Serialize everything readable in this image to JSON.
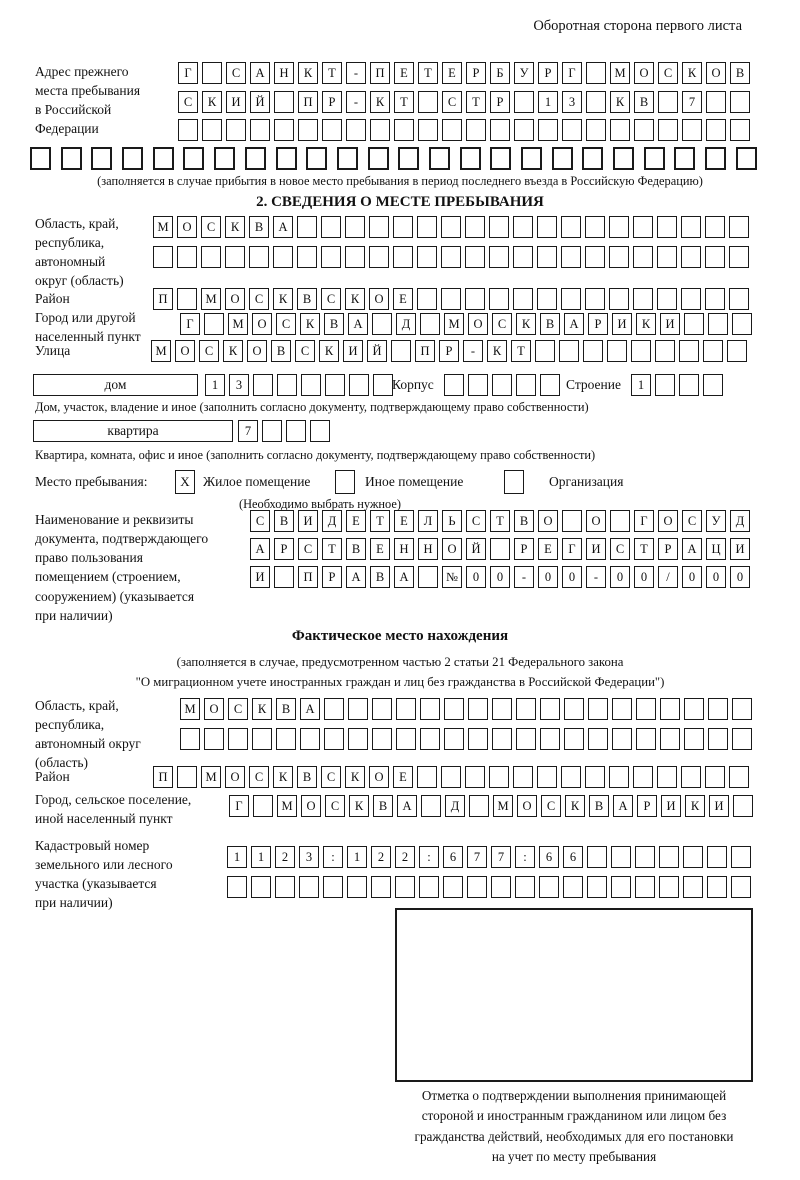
{
  "header": {
    "title": "Оборотная сторона первого листа"
  },
  "prev_address": {
    "label": "Адрес прежнего\nместа пребывания\nв Российской\nФедерации",
    "rows": [
      [
        "Г",
        "",
        "С",
        "А",
        "Н",
        "К",
        "Т",
        "-",
        "П",
        "Е",
        "Т",
        "Е",
        "Р",
        "Б",
        "У",
        "Р",
        "Г",
        "",
        "М",
        "О",
        "С",
        "К",
        "О",
        "В"
      ],
      [
        "С",
        "К",
        "И",
        "Й",
        "",
        "П",
        "Р",
        "-",
        "К",
        "Т",
        "",
        "С",
        "Т",
        "Р",
        "",
        "1",
        "3",
        "",
        "К",
        "В",
        "",
        "7",
        "",
        ""
      ],
      [
        "",
        "",
        "",
        "",
        "",
        "",
        "",
        "",
        "",
        "",
        "",
        "",
        "",
        "",
        "",
        "",
        "",
        "",
        "",
        "",
        "",
        "",
        "",
        ""
      ]
    ],
    "full_row": [
      "",
      "",
      "",
      "",
      "",
      "",
      "",
      "",
      "",
      "",
      "",
      "",
      "",
      "",
      "",
      "",
      "",
      "",
      "",
      "",
      "",
      "",
      "",
      ""
    ],
    "note": "(заполняется в случае прибытия в новое место пребывания в период последнего въезда в Российскую Федерацию)"
  },
  "section2": {
    "title": "2. СВЕДЕНИЯ О МЕСТЕ ПРЕБЫВАНИЯ",
    "region": {
      "label": "Область, край,\nреспублика,\nавтономный\nокруг (область)",
      "rows": [
        [
          "М",
          "О",
          "С",
          "К",
          "В",
          "А",
          "",
          "",
          "",
          "",
          "",
          "",
          "",
          "",
          "",
          "",
          "",
          "",
          "",
          "",
          "",
          "",
          "",
          "",
          ""
        ],
        [
          "",
          "",
          "",
          "",
          "",
          "",
          "",
          "",
          "",
          "",
          "",
          "",
          "",
          "",
          "",
          "",
          "",
          "",
          "",
          "",
          "",
          "",
          "",
          "",
          ""
        ]
      ]
    },
    "district": {
      "label": "Район",
      "cells": [
        "П",
        "",
        "М",
        "О",
        "С",
        "К",
        "В",
        "С",
        "К",
        "О",
        "Е",
        "",
        "",
        "",
        "",
        "",
        "",
        "",
        "",
        "",
        "",
        "",
        "",
        "",
        ""
      ]
    },
    "city": {
      "label": "Город или другой\nнаселенный пункт",
      "cells": [
        "Г",
        "",
        "М",
        "О",
        "С",
        "К",
        "В",
        "А",
        "",
        "Д",
        "",
        "М",
        "О",
        "С",
        "К",
        "В",
        "А",
        "Р",
        "И",
        "К",
        "И",
        "",
        "",
        ""
      ]
    },
    "street": {
      "label": "Улица",
      "cells": [
        "М",
        "О",
        "С",
        "К",
        "О",
        "В",
        "С",
        "К",
        "И",
        "Й",
        "",
        "П",
        "Р",
        "-",
        "К",
        "Т",
        "",
        "",
        "",
        "",
        "",
        "",
        "",
        "",
        ""
      ]
    },
    "house": {
      "box_label": "дом",
      "cells": [
        "1",
        "3",
        "",
        "",
        "",
        "",
        "",
        ""
      ],
      "korpus_label": "Корпус",
      "korpus_cells": [
        "",
        "",
        "",
        "",
        ""
      ],
      "stroenie_label": "Строение",
      "stroenie_cells": [
        "1",
        "",
        "",
        ""
      ]
    },
    "house_note": "Дом, участок, владение и иное (заполнить согласно документу, подтверждающему право собственности)",
    "apartment": {
      "box_label": "квартира",
      "cells": [
        "7",
        "",
        "",
        ""
      ]
    },
    "apartment_note": "Квартира, комната, офис и иное (заполнить согласно документу, подтверждающему право собственности)",
    "stay": {
      "label": "Место пребывания:",
      "options": [
        {
          "label": "Жилое помещение",
          "mark": "X"
        },
        {
          "label": "Иное помещение",
          "mark": ""
        },
        {
          "label": "Организация",
          "mark": ""
        }
      ],
      "note": "(Необходимо выбрать нужное)"
    },
    "document": {
      "label": "Наименование и реквизиты\nдокумента, подтверждающего\nправо пользования\nпомещением (строением,\nсооружением) (указывается\nпри наличии)",
      "rows": [
        [
          "С",
          "В",
          "И",
          "Д",
          "Е",
          "Т",
          "Е",
          "Л",
          "Ь",
          "С",
          "Т",
          "В",
          "О",
          "",
          "О",
          "",
          "Г",
          "О",
          "С",
          "У",
          "Д"
        ],
        [
          "А",
          "Р",
          "С",
          "Т",
          "В",
          "Е",
          "Н",
          "Н",
          "О",
          "Й",
          "",
          "Р",
          "Е",
          "Г",
          "И",
          "С",
          "Т",
          "Р",
          "А",
          "Ц",
          "И"
        ],
        [
          "И",
          "",
          "П",
          "Р",
          "А",
          "В",
          "А",
          "",
          "№",
          "0",
          "0",
          "-",
          "0",
          "0",
          "-",
          "0",
          "0",
          "/",
          "0",
          "0",
          "0"
        ]
      ]
    }
  },
  "actual": {
    "title": "Фактическое место нахождения",
    "note1": "(заполняется в случае, предусмотренном частью 2 статьи 21 Федерального закона",
    "note2": "\"О миграционном учете иностранных граждан и лиц без гражданства в Российской Федерации\")",
    "region": {
      "label": "Область, край,\nреспублика,\nавтономный округ\n(область)",
      "rows": [
        [
          "М",
          "О",
          "С",
          "К",
          "В",
          "А",
          "",
          "",
          "",
          "",
          "",
          "",
          "",
          "",
          "",
          "",
          "",
          "",
          "",
          "",
          "",
          "",
          "",
          ""
        ],
        [
          "",
          "",
          "",
          "",
          "",
          "",
          "",
          "",
          "",
          "",
          "",
          "",
          "",
          "",
          "",
          "",
          "",
          "",
          "",
          "",
          "",
          "",
          "",
          ""
        ]
      ]
    },
    "district": {
      "label": "Район",
      "cells": [
        "П",
        "",
        "М",
        "О",
        "С",
        "К",
        "В",
        "С",
        "К",
        "О",
        "Е",
        "",
        "",
        "",
        "",
        "",
        "",
        "",
        "",
        "",
        "",
        "",
        "",
        "",
        ""
      ]
    },
    "city": {
      "label": "Город, сельское поселение,\nиной населенный пункт",
      "cells": [
        "Г",
        "",
        "М",
        "О",
        "С",
        "К",
        "В",
        "А",
        "",
        "Д",
        "",
        "М",
        "О",
        "С",
        "К",
        "В",
        "А",
        "Р",
        "И",
        "К",
        "И",
        ""
      ]
    },
    "cadastral": {
      "label": "Кадастровый номер\nземельного или лесного\nучастка (указывается\nпри наличии)",
      "rows": [
        [
          "1",
          "1",
          "2",
          "3",
          ":",
          "1",
          "2",
          "2",
          ":",
          "6",
          "7",
          "7",
          ":",
          "6",
          "6",
          "",
          "",
          "",
          "",
          "",
          "",
          ""
        ],
        [
          "",
          "",
          "",
          "",
          "",
          "",
          "",
          "",
          "",
          "",
          "",
          "",
          "",
          "",
          "",
          "",
          "",
          "",
          "",
          "",
          "",
          ""
        ]
      ]
    }
  },
  "stamp": {
    "caption": "Отметка о подтверждении выполнения принимающей\nстороной и иностранным гражданином или лицом без\nгражданства действий, необходимых для его постановки\nна учет по месту пребывания"
  }
}
